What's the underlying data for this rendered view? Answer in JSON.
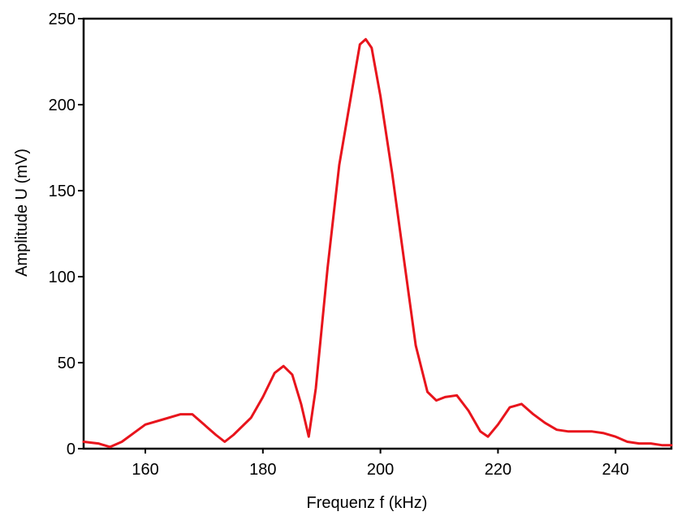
{
  "chart_data": {
    "type": "line",
    "title": "",
    "xlabel": "Frequenz f (kHz)",
    "ylabel": "Amplitude U (mV)",
    "xlim": [
      149.5,
      249.5
    ],
    "ylim": [
      0,
      250
    ],
    "x_ticks": [
      160,
      180,
      200,
      220,
      240
    ],
    "y_ticks": [
      0,
      50,
      100,
      150,
      200,
      250
    ],
    "grid": false,
    "legend": "none",
    "series": [
      {
        "color": "#e8141c",
        "x": [
          149.5,
          152,
          154,
          156,
          158,
          160,
          163,
          166,
          168,
          170,
          172,
          173.5,
          175,
          178,
          180,
          182,
          183.5,
          185,
          186.5,
          187.8,
          189,
          191,
          193,
          195,
          196.5,
          197.5,
          198.5,
          200,
          202,
          204,
          206,
          208,
          209.5,
          211,
          213,
          215,
          217,
          218.3,
          220,
          222,
          224,
          226,
          228,
          230,
          232,
          234,
          236,
          238,
          240,
          242,
          244,
          246,
          248,
          249.5
        ],
        "y": [
          4,
          3,
          1,
          4,
          9,
          14,
          17,
          20,
          20,
          14,
          8,
          4,
          8,
          18,
          30,
          44,
          48,
          43,
          26,
          7,
          35,
          105,
          165,
          205,
          235,
          238,
          233,
          205,
          160,
          110,
          60,
          33,
          28,
          30,
          31,
          22,
          10,
          7,
          14,
          24,
          26,
          20,
          15,
          11,
          10,
          10,
          10,
          9,
          7,
          4,
          3,
          3,
          2,
          2
        ]
      }
    ]
  }
}
